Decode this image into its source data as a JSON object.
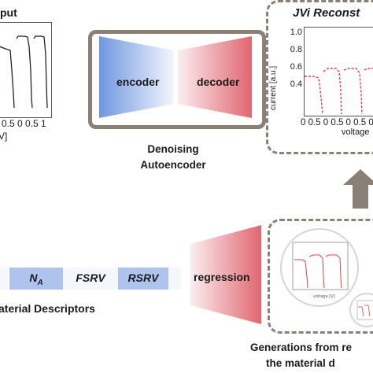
{
  "input_panel": {
    "title": "put",
    "xticks": [
      "0",
      "5",
      "0",
      "5",
      "1"
    ],
    "unit": "V]",
    "xticks_row": "0.5 0 0.5 1"
  },
  "autoencoder": {
    "encoder_label": "encoder",
    "decoder_label": "decoder",
    "caption_line1": "Denoising",
    "caption_line2": "Autoencoder",
    "encoder_color": "#6f97e0",
    "decoder_color": "#e06670",
    "frame_color": "#8a8075"
  },
  "reconstruction": {
    "title": "JVi Reconst",
    "ylabel": "current [a.u.]",
    "xlabel": "voltage",
    "yticks": [
      "1.0",
      "0.8",
      "0.6",
      "0.4"
    ],
    "xticks_row": "0 0.5 0 0.5 0 0.5 0",
    "line_color": "#e04040"
  },
  "descriptors": {
    "cells": [
      "N_A",
      "FSRV",
      "RSRV"
    ],
    "caption": "aterial Descriptors",
    "cell_blue": "#aec4ef",
    "cell_light": "#f4f7fc"
  },
  "regression": {
    "label": "regression"
  },
  "generations": {
    "caption_line1": "Generations from re",
    "caption_line2": "the material d"
  }
}
